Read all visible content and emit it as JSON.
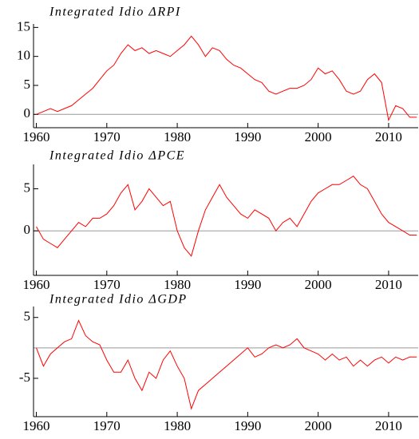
{
  "chart_data": [
    {
      "type": "line",
      "title": "Integrated Idio ΔRPI",
      "color": "#ff0000",
      "x": [
        1960,
        1961,
        1962,
        1963,
        1964,
        1965,
        1966,
        1967,
        1968,
        1969,
        1970,
        1971,
        1972,
        1973,
        1974,
        1975,
        1976,
        1977,
        1978,
        1979,
        1980,
        1981,
        1982,
        1983,
        1984,
        1985,
        1986,
        1987,
        1988,
        1989,
        1990,
        1991,
        1992,
        1993,
        1994,
        1995,
        1996,
        1997,
        1998,
        1999,
        2000,
        2001,
        2002,
        2003,
        2004,
        2005,
        2006,
        2007,
        2008,
        2009,
        2010,
        2011,
        2012,
        2013,
        2014
      ],
      "values": [
        0,
        0.5,
        1,
        0.5,
        1,
        1.5,
        2.5,
        3.5,
        4.5,
        6,
        7.5,
        8.5,
        10.5,
        12,
        11,
        11.5,
        10.5,
        11,
        10.5,
        10,
        11,
        12,
        13.5,
        12,
        10,
        11.5,
        11,
        9.5,
        8.5,
        8,
        7,
        6,
        5.5,
        4,
        3.5,
        4,
        4.5,
        4.5,
        5,
        6,
        8,
        7,
        7.5,
        6,
        4,
        3.5,
        4,
        6,
        7,
        5.5,
        -1,
        1.5,
        1,
        -0.5,
        -0.5
      ],
      "reference_line": 0,
      "xlim": [
        1959.6,
        2014.2
      ],
      "xticks": [
        1960,
        1970,
        1980,
        1990,
        2000,
        2010
      ],
      "ylim": [
        -2.3,
        15.6
      ],
      "yticks": [
        0,
        5,
        10,
        15
      ]
    },
    {
      "type": "line",
      "title": "Integrated Idio ΔPCE",
      "color": "#ff0000",
      "x": [
        1960,
        1961,
        1962,
        1963,
        1964,
        1965,
        1966,
        1967,
        1968,
        1969,
        1970,
        1971,
        1972,
        1973,
        1974,
        1975,
        1976,
        1977,
        1978,
        1979,
        1980,
        1981,
        1982,
        1983,
        1984,
        1985,
        1986,
        1987,
        1988,
        1989,
        1990,
        1991,
        1992,
        1993,
        1994,
        1995,
        1996,
        1997,
        1998,
        1999,
        2000,
        2001,
        2002,
        2003,
        2004,
        2005,
        2006,
        2007,
        2008,
        2009,
        2010,
        2011,
        2012,
        2013,
        2014
      ],
      "values": [
        0.5,
        -1,
        -1.5,
        -2,
        -1,
        0,
        1,
        0.5,
        1.5,
        1.5,
        2,
        3,
        4.5,
        5.5,
        2.5,
        3.5,
        5,
        4,
        3,
        3.5,
        0,
        -2,
        -3,
        0,
        2.5,
        4,
        5.5,
        4,
        3,
        2,
        1.5,
        2.5,
        2,
        1.5,
        0,
        1,
        1.5,
        0.5,
        2,
        3.5,
        4.5,
        5,
        5.5,
        5.5,
        6,
        6.5,
        5.5,
        5,
        3.5,
        2,
        1,
        0.5,
        0,
        -0.5,
        -0.5
      ],
      "reference_line": 0,
      "xlim": [
        1959.6,
        2014.2
      ],
      "xticks": [
        1960,
        1970,
        1980,
        1990,
        2000,
        2010
      ],
      "ylim": [
        -5.3,
        7.9
      ],
      "yticks": [
        0,
        5
      ]
    },
    {
      "type": "line",
      "title": "Integrated Idio ΔGDP",
      "color": "#ff0000",
      "x": [
        1960,
        1961,
        1962,
        1963,
        1964,
        1965,
        1966,
        1967,
        1968,
        1969,
        1970,
        1971,
        1972,
        1973,
        1974,
        1975,
        1976,
        1977,
        1978,
        1979,
        1980,
        1981,
        1982,
        1983,
        1984,
        1985,
        1986,
        1987,
        1988,
        1989,
        1990,
        1991,
        1992,
        1993,
        1994,
        1995,
        1996,
        1997,
        1998,
        1999,
        2000,
        2001,
        2002,
        2003,
        2004,
        2005,
        2006,
        2007,
        2008,
        2009,
        2010,
        2011,
        2012,
        2013,
        2014
      ],
      "values": [
        0,
        -3,
        -1,
        0,
        1,
        1.5,
        4.5,
        2,
        1,
        0.5,
        -2,
        -4,
        -4,
        -2,
        -5,
        -7,
        -4,
        -5,
        -2,
        -0.5,
        -3,
        -5,
        -10,
        -7,
        -6,
        -5,
        -4,
        -3,
        -2,
        -1,
        0,
        -1.5,
        -1,
        0,
        0.5,
        0,
        0.5,
        1.5,
        0,
        -0.5,
        -1,
        -2,
        -1,
        -2,
        -1.5,
        -3,
        -2,
        -3,
        -2,
        -1.5,
        -2.5,
        -1.5,
        -2,
        -1.5,
        -1.5
      ],
      "reference_line": 0,
      "xlim": [
        1959.6,
        2014.2
      ],
      "xticks": [
        1960,
        1970,
        1980,
        1990,
        2000,
        2010
      ],
      "ylim": [
        -11.3,
        6.8
      ],
      "yticks": [
        -5,
        5
      ]
    }
  ]
}
